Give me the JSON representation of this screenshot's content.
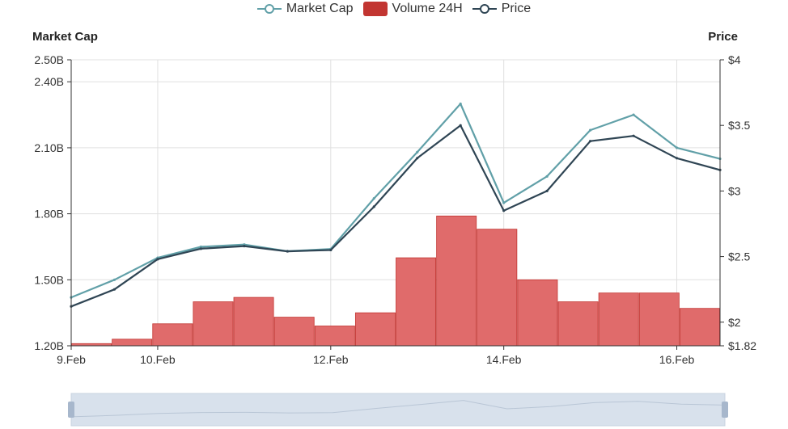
{
  "legend": {
    "market_cap": "Market Cap",
    "volume": "Volume 24H",
    "price": "Price"
  },
  "axes": {
    "left_title": "Market Cap",
    "right_title": "Price"
  },
  "colors": {
    "market_cap": "#61a0a8",
    "price": "#2f4554",
    "volume": "#c23531",
    "volume_fill": "#e06b6b",
    "grid": "#e0e0e0",
    "slider_bg": "#d8e1ec",
    "slider_handle": "#a7b7cc"
  },
  "chart_data": {
    "type": "line",
    "x": [
      "9.Feb",
      "9.Feb 12:00",
      "10.Feb",
      "10.Feb 12:00",
      "11.Feb",
      "11.Feb 12:00",
      "12.Feb",
      "12.Feb 12:00",
      "13.Feb",
      "13.Feb 12:00",
      "14.Feb",
      "14.Feb 12:00",
      "15.Feb",
      "15.Feb 12:00",
      "16.Feb",
      "16.Feb 02:00"
    ],
    "x_ticks": [
      "9.Feb",
      "10.Feb",
      "12.Feb",
      "14.Feb",
      "16.Feb"
    ],
    "series": [
      {
        "name": "Market Cap",
        "axis": "left",
        "values": [
          1.42,
          1.5,
          1.6,
          1.65,
          1.66,
          1.63,
          1.64,
          1.87,
          2.08,
          2.3,
          1.85,
          1.97,
          2.18,
          2.25,
          2.1,
          2.05
        ]
      },
      {
        "name": "Price",
        "axis": "right",
        "values": [
          2.12,
          2.25,
          2.48,
          2.56,
          2.58,
          2.54,
          2.55,
          2.88,
          3.25,
          3.5,
          2.85,
          3.0,
          3.38,
          3.42,
          3.25,
          3.16
        ]
      },
      {
        "name": "Volume 24H",
        "axis": "left",
        "type": "bar",
        "values": [
          1.21,
          1.23,
          1.3,
          1.4,
          1.42,
          1.33,
          1.29,
          1.35,
          1.6,
          1.79,
          1.73,
          1.5,
          1.4,
          1.44,
          1.44,
          1.37
        ]
      }
    ],
    "y_left": {
      "ticks": [
        "1.20B",
        "1.50B",
        "1.80B",
        "2.10B",
        "2.40B",
        "2.50B"
      ],
      "tick_values": [
        1.2,
        1.5,
        1.8,
        2.1,
        2.4,
        2.5
      ],
      "ylim": [
        1.2,
        2.5
      ]
    },
    "y_right": {
      "ticks": [
        "$1.82",
        "$2",
        "$2.5",
        "$3",
        "$3.5",
        "$4"
      ],
      "tick_values": [
        1.82,
        2.0,
        2.5,
        3.0,
        3.5,
        4.0
      ],
      "ylim": [
        1.82,
        4.0
      ]
    },
    "grid": true,
    "legend_position": "top-center"
  }
}
